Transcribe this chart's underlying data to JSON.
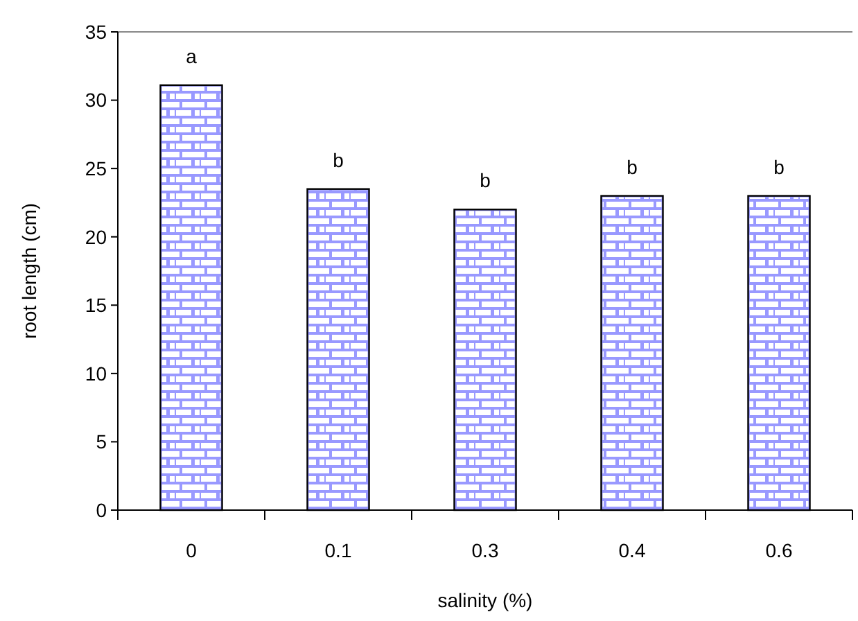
{
  "chart_data": {
    "type": "bar",
    "xlabel": "salinity (%)",
    "ylabel": "root length (cm)",
    "categories": [
      "0",
      "0.1",
      "0.3",
      "0.4",
      "0.6"
    ],
    "values": [
      31.1,
      23.5,
      22.0,
      23.0,
      23.0
    ],
    "color": "#9999ff",
    "ylim": [
      0,
      35
    ],
    "yticks": [
      0,
      5,
      10,
      15,
      20,
      25,
      30,
      35
    ],
    "grid": false,
    "annotations": [
      "a",
      "b",
      "b",
      "b",
      "b"
    ]
  }
}
